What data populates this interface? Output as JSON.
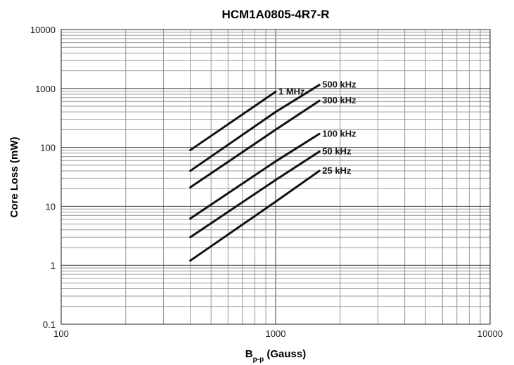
{
  "chart_data": {
    "type": "line",
    "title": "HCM1A0805-4R7-R",
    "xlabel": {
      "main": "B",
      "subscript": "p-p",
      "rest": " (Gauss)"
    },
    "ylabel": "Core Loss (mW)",
    "x_scale": "log",
    "y_scale": "log",
    "xlim": [
      100,
      10000
    ],
    "ylim": [
      0.1,
      10000
    ],
    "x_ticks": [
      100,
      1000,
      10000
    ],
    "x_tick_labels": [
      "100",
      "1000",
      "10000"
    ],
    "y_ticks": [
      0.1,
      1,
      10,
      100,
      1000,
      10000
    ],
    "y_tick_labels": [
      "0.1",
      "1",
      "10",
      "100",
      "1000",
      "10000"
    ],
    "grid": true,
    "legend": "inline labels at line ends",
    "line_color": "#111111",
    "series": [
      {
        "name": "1 MHz",
        "x": [
          400,
          1000
        ],
        "y": [
          90,
          880
        ]
      },
      {
        "name": "500 kHz",
        "x": [
          400,
          1000,
          1600
        ],
        "y": [
          40,
          400,
          1150
        ]
      },
      {
        "name": "300 kHz",
        "x": [
          400,
          1000,
          1600
        ],
        "y": [
          21,
          200,
          620
        ]
      },
      {
        "name": "100 kHz",
        "x": [
          400,
          1000,
          1600
        ],
        "y": [
          6.2,
          58,
          170
        ]
      },
      {
        "name": "50 kHz",
        "x": [
          400,
          1000,
          1600
        ],
        "y": [
          3,
          28,
          85
        ]
      },
      {
        "name": "25 kHz",
        "x": [
          400,
          1000,
          1600
        ],
        "y": [
          1.2,
          12,
          40
        ]
      }
    ]
  }
}
